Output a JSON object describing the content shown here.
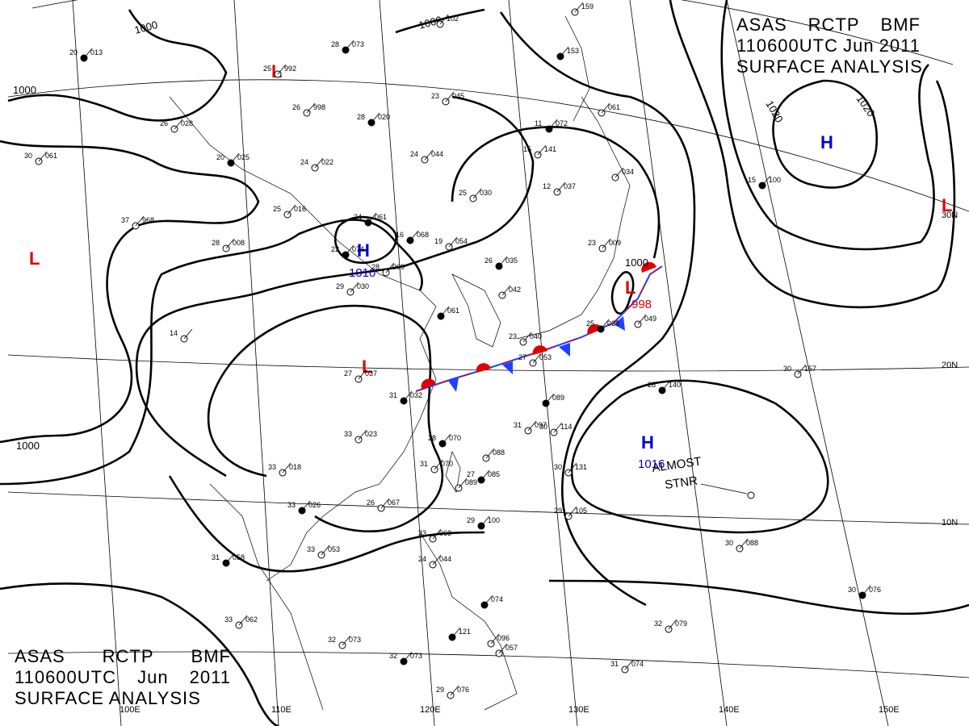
{
  "header": {
    "agency": "ASAS",
    "station": "RCTP",
    "code": "BMF",
    "time": "110600UTC",
    "month": "Jun",
    "year": "2011",
    "product": "SURFACE ANALYSIS"
  },
  "pressure_centers": [
    {
      "type": "L",
      "value": "",
      "color": "#e00000"
    },
    {
      "type": "L",
      "value": "",
      "color": "#e00000"
    },
    {
      "type": "H",
      "value": "1010",
      "color": "#0000d0"
    },
    {
      "type": "L",
      "value": "",
      "color": "#e00000"
    },
    {
      "type": "L",
      "value": "998",
      "color": "#e00000"
    },
    {
      "type": "H",
      "value": "",
      "color": "#0000d0"
    },
    {
      "type": "H",
      "value": "1016",
      "color": "#0000d0"
    },
    {
      "type": "L",
      "value": "",
      "color": "#e00000"
    }
  ],
  "isobar_labels": [
    "1000",
    "1000",
    "1000",
    "1000",
    "1000",
    "1020",
    "1020"
  ],
  "annotation": [
    "ALMOST",
    "STNR"
  ],
  "longitude_labels": [
    "100E",
    "110E",
    "120E",
    "130E",
    "140E",
    "150E"
  ],
  "latitude_labels": [
    "30N",
    "20N",
    "10N"
  ],
  "station_samples": [
    {
      "t": "20",
      "p": "013"
    },
    {
      "t": "26",
      "p": "028"
    },
    {
      "t": "30",
      "p": "061"
    },
    {
      "t": "28",
      "p": "073"
    },
    {
      "t": "25",
      "p": "992"
    },
    {
      "t": "26",
      "p": "998"
    },
    {
      "t": "28",
      "p": "020"
    },
    {
      "t": "23",
      "p": "045"
    },
    {
      "t": "24",
      "p": "044"
    },
    {
      "t": "20",
      "p": "025"
    },
    {
      "t": "24",
      "p": "022"
    },
    {
      "t": "25",
      "p": "016"
    },
    {
      "t": "24",
      "p": "061"
    },
    {
      "t": "37",
      "p": "968"
    },
    {
      "t": "28",
      "p": "008"
    },
    {
      "t": "22",
      "p": "074"
    },
    {
      "t": "28",
      "p": "009"
    },
    {
      "t": "29",
      "p": "030"
    },
    {
      "t": "16",
      "p": "068"
    },
    {
      "t": "19",
      "p": "054"
    },
    {
      "t": "25",
      "p": "030"
    },
    {
      "t": "26",
      "p": "035"
    },
    {
      "t": "12",
      "p": "037"
    },
    {
      "t": "15",
      "p": "141"
    },
    {
      "t": "11",
      "p": "072"
    },
    {
      "t": "",
      "p": "061"
    },
    {
      "t": "",
      "p": "034"
    },
    {
      "t": "",
      "p": "153"
    },
    {
      "t": "",
      "p": "159"
    },
    {
      "t": "",
      "p": "102"
    },
    {
      "t": "15",
      "p": "100"
    },
    {
      "t": "14",
      "p": ""
    },
    {
      "t": "27",
      "p": "037"
    },
    {
      "t": "31",
      "p": "032"
    },
    {
      "t": "33",
      "p": "023"
    },
    {
      "t": "",
      "p": "042"
    },
    {
      "t": "",
      "p": "061"
    },
    {
      "t": "23",
      "p": "040"
    },
    {
      "t": "27",
      "p": "053"
    },
    {
      "t": "",
      "p": "089"
    },
    {
      "t": "31",
      "p": "097"
    },
    {
      "t": "30",
      "p": "114"
    },
    {
      "t": "28",
      "p": "070"
    },
    {
      "t": "",
      "p": "088"
    },
    {
      "t": "31",
      "p": "070"
    },
    {
      "t": "27",
      "p": "085"
    },
    {
      "t": "",
      "p": "089"
    },
    {
      "t": "33",
      "p": "018"
    },
    {
      "t": "33",
      "p": "026"
    },
    {
      "t": "26",
      "p": "067"
    },
    {
      "t": "33",
      "p": "053"
    },
    {
      "t": "31",
      "p": "058"
    },
    {
      "t": "33",
      "p": "062"
    },
    {
      "t": "32",
      "p": "073"
    },
    {
      "t": "32",
      "p": "073"
    },
    {
      "t": "33",
      "p": "063"
    },
    {
      "t": "24",
      "p": "044"
    },
    {
      "t": "29",
      "p": "100"
    },
    {
      "t": "30",
      "p": "131"
    },
    {
      "t": "29",
      "p": "105"
    },
    {
      "t": "28",
      "p": "140"
    },
    {
      "t": "30",
      "p": "157"
    },
    {
      "t": "30",
      "p": "088"
    },
    {
      "t": "30",
      "p": "076"
    },
    {
      "t": "32",
      "p": "079"
    },
    {
      "t": "31",
      "p": "074"
    },
    {
      "t": "",
      "p": "074"
    },
    {
      "t": "",
      "p": "057"
    },
    {
      "t": "29",
      "p": "076"
    },
    {
      "t": "",
      "p": "121"
    },
    {
      "t": "",
      "p": "096"
    },
    {
      "t": "23",
      "p": "009"
    },
    {
      "t": "25",
      "p": "023"
    },
    {
      "t": "",
      "p": "049"
    }
  ]
}
